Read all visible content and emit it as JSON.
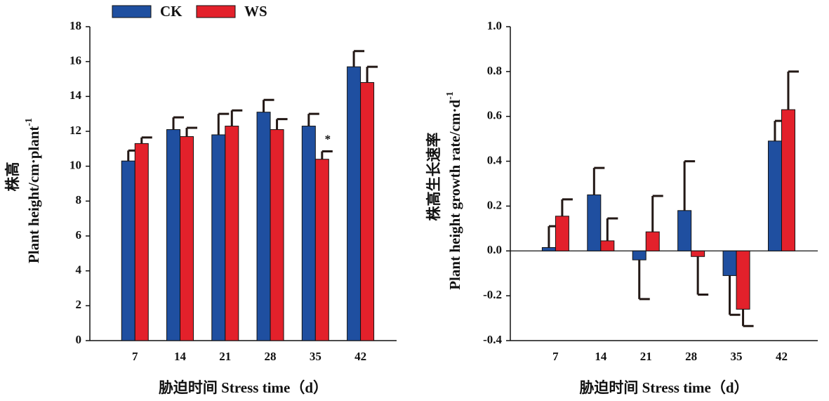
{
  "chart_data": [
    {
      "type": "bar",
      "categories": [
        "7",
        "14",
        "21",
        "28",
        "35",
        "42"
      ],
      "series": [
        {
          "name": "CK",
          "color": "#1f4fa0",
          "values": [
            10.3,
            12.1,
            11.8,
            13.1,
            12.3,
            15.7
          ],
          "errors": [
            0.6,
            0.7,
            1.2,
            0.7,
            0.7,
            0.9
          ]
        },
        {
          "name": "WS",
          "color": "#e3212b",
          "values": [
            11.3,
            11.7,
            12.3,
            12.1,
            10.4,
            14.8
          ],
          "errors": [
            0.35,
            0.5,
            0.9,
            0.6,
            0.45,
            0.9
          ]
        }
      ],
      "ylim": [
        0,
        18
      ],
      "yticks": [
        0,
        2,
        4,
        6,
        8,
        10,
        12,
        14,
        16,
        18
      ],
      "ylabel": "株高",
      "ylabel2": "Plant height/cm·plant",
      "ylabel2_sup": "-1",
      "xlabel": "胁迫时间 Stress time（d）",
      "annotations": [
        {
          "text": "*",
          "series": 1,
          "category": 4
        }
      ]
    },
    {
      "type": "bar",
      "categories": [
        "7",
        "14",
        "21",
        "28",
        "35",
        "42"
      ],
      "series": [
        {
          "name": "CK",
          "color": "#1f4fa0",
          "values": [
            0.015,
            0.25,
            -0.04,
            0.18,
            -0.11,
            0.49
          ],
          "errors": [
            0.095,
            0.12,
            0.175,
            0.22,
            0.175,
            0.09
          ]
        },
        {
          "name": "WS",
          "color": "#e3212b",
          "values": [
            0.155,
            0.045,
            0.085,
            -0.025,
            -0.26,
            0.63
          ],
          "errors": [
            0.075,
            0.1,
            0.16,
            0.17,
            0.075,
            0.17
          ]
        }
      ],
      "ylim": [
        -0.4,
        1.0
      ],
      "yticks": [
        -0.4,
        -0.2,
        {
          "value": 0,
          "label": "0.0"
        },
        0.2,
        0.4,
        0.6,
        0.8,
        {
          "value": 1,
          "label": "1.0"
        }
      ],
      "ylabel": "株高生长速率",
      "ylabel2": "Plant height growth rate/cm·d",
      "ylabel2_sup": "-1",
      "xlabel": "胁迫时间 Stress time（d）",
      "zero_line": true
    }
  ]
}
